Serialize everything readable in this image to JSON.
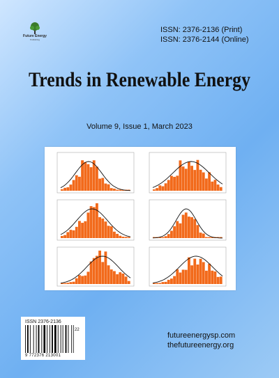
{
  "journal": {
    "logo_text": "Future Energy",
    "logo_subtext": "Publishing"
  },
  "issn": {
    "print": "ISSN: 2376-2136 (Print)",
    "online": "ISSN: 2376-2144 (Online)"
  },
  "title": "Trends in Renewable Energy",
  "volume": "Volume 9, Issue 1, March 2023",
  "barcode": {
    "issn": "ISSN 2376-2136",
    "number": "9 772376 213001",
    "addon": "22"
  },
  "links": {
    "site1": "futureenergysp.com",
    "site2": "thefutureenergy.org"
  },
  "colors": {
    "bar": "#f26a1b",
    "curve": "#111111",
    "background": "#7ab6f2"
  }
}
